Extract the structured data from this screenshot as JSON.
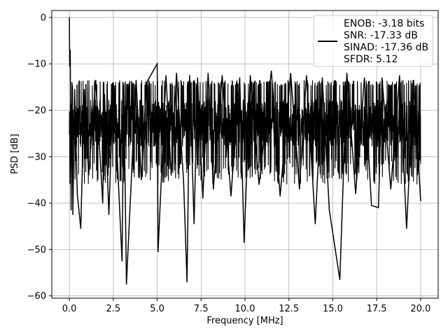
{
  "chart_data": {
    "type": "line",
    "title": "",
    "xlabel": "Frequency [MHz]",
    "ylabel": "PSD [dB]",
    "xlim": [
      -1.0,
      21.0
    ],
    "ylim": [
      -60.5,
      1.5
    ],
    "x_ticks": [
      0.0,
      2.5,
      5.0,
      7.5,
      10.0,
      12.5,
      15.0,
      17.5,
      20.0
    ],
    "x_tick_labels": [
      "0.0",
      "2.5",
      "5.0",
      "7.5",
      "10.0",
      "12.5",
      "15.0",
      "17.5",
      "20.0"
    ],
    "y_ticks": [
      0,
      -10,
      -20,
      -30,
      -40,
      -50,
      -60
    ],
    "y_tick_labels": [
      "0",
      "−10",
      "−20",
      "−30",
      "−40",
      "−50",
      "−60"
    ],
    "grid": true,
    "legend_position": "top-right",
    "legend_lines": [
      "ENOB: -3.18 bits",
      "SNR: -17.33 dB",
      "SINAD: -17.36 dB",
      "SFDR: 5.12"
    ],
    "series": [
      {
        "color": "#000000",
        "x": [
          0.0,
          0.02,
          0.05,
          0.1,
          0.15,
          0.2,
          0.3,
          0.45,
          0.65,
          0.85,
          1.1,
          1.5,
          1.9,
          2.0,
          2.25,
          2.5,
          2.7,
          3.0,
          3.1,
          3.25,
          3.6,
          3.8,
          4.1,
          4.4,
          5.0,
          5.05,
          5.5,
          5.8,
          6.1,
          6.5,
          6.7,
          6.85,
          7.1,
          7.3,
          7.6,
          7.9,
          8.2,
          8.7,
          9.2,
          9.7,
          9.95,
          10.3,
          10.8,
          11.5,
          12.0,
          12.6,
          13.1,
          13.5,
          14.0,
          14.4,
          14.8,
          15.4,
          15.8,
          16.3,
          16.8,
          17.2,
          17.6,
          17.8,
          18.3,
          18.8,
          19.2,
          19.6,
          20.0
        ],
        "y": [
          0.0,
          -10.5,
          -7.0,
          -41.5,
          -14.0,
          -42.5,
          -15.5,
          -38.0,
          -45.5,
          -15.5,
          -34.0,
          -13.5,
          -40.0,
          -16.5,
          -42.5,
          -14.0,
          -28.0,
          -52.5,
          -14.5,
          -57.5,
          -29.0,
          -13.5,
          -35.0,
          -14.0,
          -10.0,
          -50.5,
          -12.5,
          -34.0,
          -12.0,
          -35.0,
          -57.0,
          -12.5,
          -44.5,
          -13.0,
          -39.0,
          -12.0,
          -37.0,
          -12.5,
          -38.5,
          -13.0,
          -48.5,
          -12.5,
          -36.0,
          -11.5,
          -38.5,
          -12.0,
          -37.0,
          -12.5,
          -44.5,
          -13.0,
          -41.5,
          -56.5,
          -12.0,
          -38.0,
          -13.0,
          -40.5,
          -41.0,
          -13.0,
          -37.0,
          -12.5,
          -45.5,
          -13.5,
          -39.5
        ]
      }
    ]
  }
}
